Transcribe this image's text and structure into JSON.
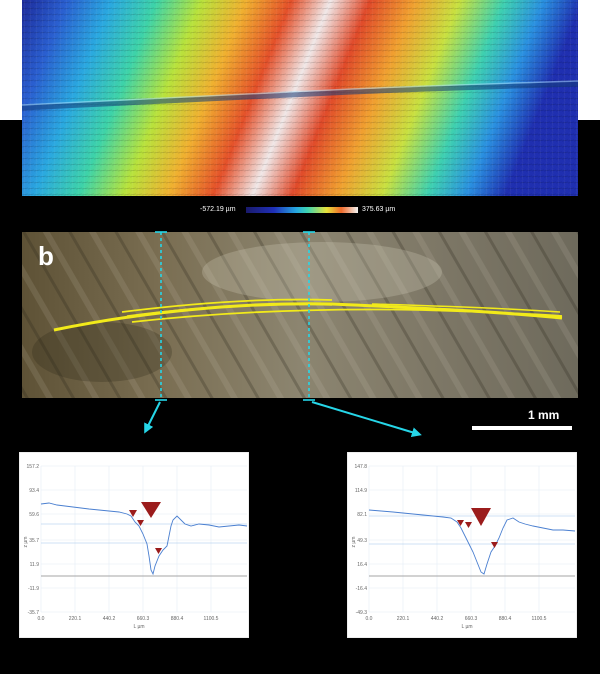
{
  "colorbar": {
    "min_label": "-572.19 µm",
    "max_label": "375.63 µm"
  },
  "panel": {
    "letter": "b"
  },
  "scalebar": {
    "label": "1 mm"
  },
  "plots": [
    {
      "y_ticks": [
        "157.2",
        "93.4",
        "59.6",
        "35.7",
        "11.9",
        "-11.9",
        "-35.7"
      ],
      "x_ticks": [
        "0.0",
        "220.1",
        "440.2",
        "660.3",
        "880.4",
        "1100.5"
      ],
      "y_label": "z\nµm",
      "x_label": "L µm"
    },
    {
      "y_ticks": [
        "147.8",
        "114.9",
        "82.1",
        "49.3",
        "16.4",
        "-16.4",
        "-49.3"
      ],
      "x_ticks": [
        "0.0",
        "220.1",
        "440.2",
        "660.3",
        "880.4",
        "1100.5"
      ],
      "y_label": "z\nµm",
      "x_label": "L µm"
    }
  ],
  "colors": {
    "profile": "#4a7fd0",
    "marker": "#9b1c1c",
    "guide": "#26d6e8",
    "trace": "#f2ea1a"
  }
}
